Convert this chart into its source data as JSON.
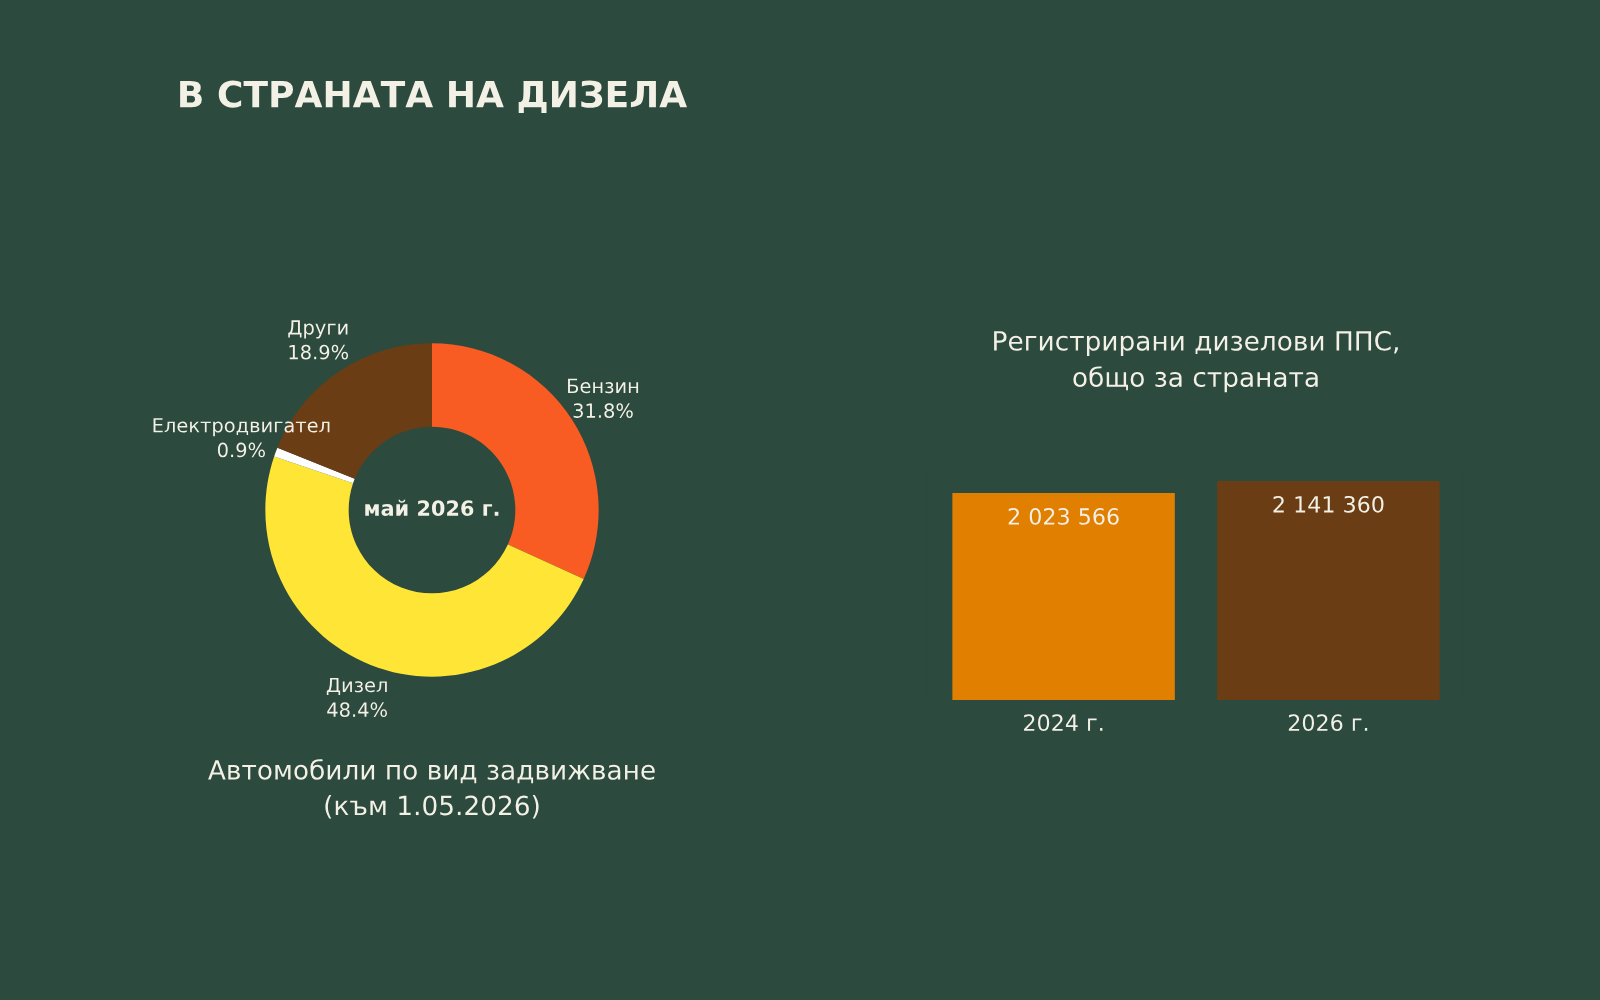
{
  "chart_data": [
    {
      "type": "donut",
      "title": "В СТРАНАТА НА ДИЗЕЛА",
      "categories": [
        "Бензин",
        "Дизел",
        "Електродвигател",
        "Други"
      ],
      "values": [
        31.8,
        48.4,
        0.9,
        18.9
      ],
      "colors": [
        "#f95c22",
        "#ffe535",
        "#ffffff",
        "#6b3d14"
      ],
      "value_labels": [
        "31.8%",
        "48.4%",
        "0.9%",
        "18.9%"
      ],
      "annotations": [
        "май 2026 г.",
        "Автомобили по вид задвижване\n(към 1.05.2026)"
      ]
    },
    {
      "type": "bar",
      "title": "Регистрирани дизелови ППС,\nобщо за страната",
      "categories": [
        "2024 г.",
        "2026 г."
      ],
      "values": [
        2023566,
        2141360
      ],
      "colors": [
        "#e07f00",
        "#6b3d14"
      ],
      "value_labels": [
        "2 023 566",
        "2 141 360"
      ],
      "tick_labels": "x"
    }
  ]
}
